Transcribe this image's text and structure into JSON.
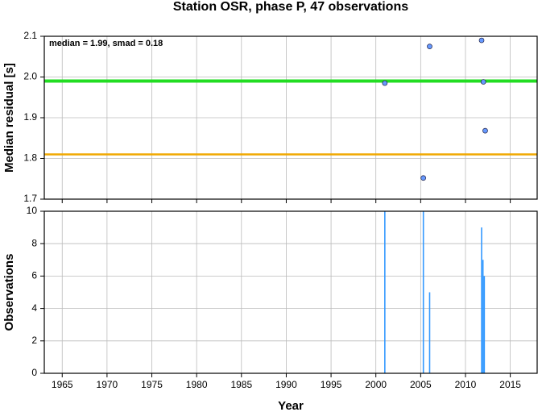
{
  "chart_data": [
    {
      "type": "scatter",
      "title": "Station OSR, phase P, 47 observations",
      "ylabel": "Median residual [s]",
      "annotation": "median = 1.99, smad = 0.18",
      "x": [
        2001.0,
        2005.3,
        2006.0,
        2011.8,
        2012.0,
        2012.2
      ],
      "series": [
        {
          "color": "#6699ff",
          "values": [
            1.985,
            1.752,
            2.075,
            2.09,
            1.988,
            1.868
          ]
        }
      ],
      "hlines": [
        {
          "value": 1.99,
          "color": "#22dd22"
        },
        {
          "value": 1.81,
          "color": "#f0a800"
        }
      ],
      "xlim": [
        1963,
        2018
      ],
      "xticks": [
        1965,
        1970,
        1975,
        1980,
        1985,
        1990,
        1995,
        2000,
        2005,
        2010,
        2015
      ],
      "ylim": [
        1.7,
        2.1
      ],
      "yticks": [
        1.7,
        1.8,
        1.9,
        {
          "value": 2.0,
          "label": "2.0"
        },
        2.1
      ],
      "grid": true
    },
    {
      "type": "bar",
      "xlabel": "Year",
      "ylabel": "Observations",
      "x": [
        2001.0,
        2005.3,
        2006.0,
        2011.8,
        2011.95,
        2012.1
      ],
      "values": [
        10,
        10,
        5,
        9,
        7,
        6
      ],
      "color": "#3399ff",
      "xlim": [
        1963,
        2018
      ],
      "xticks": [
        1965,
        1970,
        1975,
        1980,
        1985,
        1990,
        1995,
        2000,
        2005,
        2010,
        2015
      ],
      "ylim": [
        0,
        10
      ],
      "yticks": [
        0,
        2,
        4,
        6,
        8,
        10
      ],
      "grid": true
    }
  ]
}
